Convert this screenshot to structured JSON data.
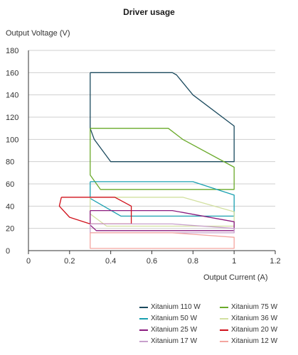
{
  "chart_data": {
    "type": "line",
    "title": "Driver usage",
    "xlabel": "Output Current (A)",
    "ylabel": "Output Voltage (V)",
    "xlim": [
      0,
      1.2
    ],
    "ylim": [
      0,
      180
    ],
    "x_ticks": [
      "0",
      "0.2",
      "0.4",
      "0.6",
      "0.8",
      "1",
      "1.2"
    ],
    "y_ticks": [
      "0",
      "20",
      "40",
      "60",
      "80",
      "100",
      "120",
      "140",
      "160",
      "180"
    ],
    "grid": "horizontal",
    "legend": "bottom-right",
    "series": [
      {
        "name": "Xitanium 110 W",
        "color": "#1b4a5e",
        "points": [
          [
            0.3,
            160
          ],
          [
            0.7,
            160
          ],
          [
            0.72,
            158
          ],
          [
            0.8,
            140
          ],
          [
            1.0,
            112
          ],
          [
            1.0,
            80
          ],
          [
            0.4,
            80
          ],
          [
            0.32,
            100
          ],
          [
            0.3,
            110
          ],
          [
            0.3,
            160
          ]
        ]
      },
      {
        "name": "Xitanium 75 W",
        "color": "#6aaa2a",
        "points": [
          [
            0.3,
            110
          ],
          [
            0.68,
            110
          ],
          [
            0.75,
            100
          ],
          [
            1.0,
            75
          ],
          [
            1.0,
            55
          ],
          [
            0.35,
            55
          ],
          [
            0.3,
            68
          ],
          [
            0.3,
            110
          ]
        ]
      },
      {
        "name": "Xitanium 50 W",
        "color": "#1aa0b0",
        "points": [
          [
            0.3,
            62
          ],
          [
            0.8,
            62
          ],
          [
            1.0,
            50
          ],
          [
            1.0,
            31
          ],
          [
            0.45,
            31
          ],
          [
            0.3,
            47
          ],
          [
            0.3,
            62
          ]
        ]
      },
      {
        "name": "Xitanium 36 W",
        "color": "#d2e0a0",
        "points": [
          [
            0.3,
            48
          ],
          [
            0.75,
            48
          ],
          [
            1.0,
            35
          ],
          [
            1.0,
            22
          ],
          [
            0.38,
            22
          ],
          [
            0.3,
            33
          ],
          [
            0.3,
            48
          ]
        ]
      },
      {
        "name": "Xitanium 25 W",
        "color": "#8a1a7e",
        "points": [
          [
            0.3,
            36
          ],
          [
            0.7,
            36
          ],
          [
            1.0,
            26
          ],
          [
            1.0,
            18
          ],
          [
            0.33,
            18
          ],
          [
            0.3,
            23
          ],
          [
            0.3,
            36
          ]
        ]
      },
      {
        "name": "Xitanium 20 W",
        "color": "#d0101a",
        "points": [
          [
            0.16,
            48
          ],
          [
            0.42,
            48
          ],
          [
            0.5,
            40
          ],
          [
            0.5,
            24
          ],
          [
            0.3,
            24
          ],
          [
            0.2,
            30
          ],
          [
            0.15,
            40
          ],
          [
            0.16,
            48
          ]
        ]
      },
      {
        "name": "Xitanium 17 W",
        "color": "#c8a0cc",
        "points": [
          [
            0.3,
            24
          ],
          [
            0.7,
            24
          ],
          [
            1.0,
            20
          ],
          [
            1.0,
            16
          ],
          [
            0.3,
            16
          ],
          [
            0.3,
            24
          ]
        ]
      },
      {
        "name": "Xitanium 12 W",
        "color": "#f4a6a0",
        "points": [
          [
            0.3,
            16
          ],
          [
            0.7,
            16
          ],
          [
            1.0,
            12
          ],
          [
            1.0,
            2
          ],
          [
            0.3,
            2
          ],
          [
            0.3,
            16
          ]
        ]
      }
    ]
  }
}
